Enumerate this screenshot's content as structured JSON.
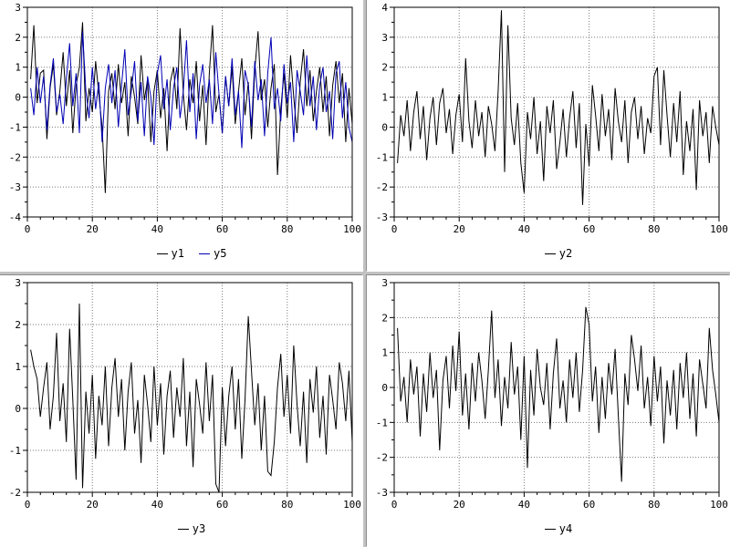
{
  "window": {
    "background": "#ffffff",
    "gutter_color": "#c2c2c2",
    "grid_color": "#7a7a7a",
    "frame_color": "#000000"
  },
  "chart_data": [
    {
      "id": "chart-y1-y5",
      "position": "top-left",
      "type": "line",
      "title": "",
      "xlabel": "",
      "ylabel": "",
      "xlim": [
        0,
        100
      ],
      "ylim": [
        -4,
        3
      ],
      "x_ticks": [
        0,
        20,
        40,
        60,
        80,
        100
      ],
      "y_ticks": [
        -4,
        -3,
        -2,
        -1,
        0,
        1,
        2,
        3
      ],
      "x_minor_step": 4,
      "y_minor_step": 0.5,
      "grid": "dotted",
      "legend_position": "bottom-center",
      "x_first": 1,
      "x_step": 1,
      "legend": [
        {
          "label": "y1",
          "color": "#000000"
        },
        {
          "label": "y5",
          "color": "#0000b4"
        }
      ],
      "series": [
        {
          "name": "y1",
          "color": "#000000",
          "values": [
            0.6,
            2.4,
            -0.2,
            0.8,
            0.9,
            -1.4,
            0.3,
            1.1,
            -0.6,
            0.2,
            1.5,
            -0.3,
            0.9,
            -1.2,
            0.4,
            1.0,
            2.5,
            -0.8,
            0.3,
            -0.5,
            1.2,
            0.1,
            -1.0,
            -3.2,
            0.2,
            0.8,
            -0.4,
            1.1,
            -0.2,
            0.5,
            -1.3,
            0.7,
            0.0,
            -0.9,
            1.4,
            -0.1,
            0.6,
            -1.5,
            0.2,
            0.9,
            -0.7,
            0.3,
            -1.8,
            0.5,
            1.0,
            -0.4,
            2.3,
            0.1,
            -1.1,
            0.6,
            -0.2,
            1.2,
            -0.8,
            0.4,
            -1.6,
            0.8,
            2.4,
            -0.5,
            0.1,
            -1.2,
            0.7,
            -0.3,
            1.0,
            -0.9,
            0.2,
            1.3,
            -0.6,
            0.5,
            -1.4,
            0.9,
            2.2,
            -0.1,
            0.6,
            -1.0,
            0.3,
            1.1,
            -2.6,
            -0.4,
            0.8,
            -0.7,
            1.4,
            0.0,
            -1.2,
            0.5,
            1.6,
            -0.3,
            0.9,
            -0.8,
            0.2,
            1.0,
            -0.5,
            0.7,
            -1.3,
            0.4,
            1.2,
            -0.2,
            0.8,
            -1.5,
            0.3,
            -0.9
          ]
        },
        {
          "name": "y5",
          "color": "#0000b4",
          "values": [
            0.3,
            -0.6,
            1.0,
            -0.2,
            0.7,
            -1.1,
            0.4,
            1.3,
            -0.5,
            0.1,
            -0.9,
            0.6,
            1.8,
            -0.3,
            0.8,
            -1.2,
            2.2,
            0.2,
            -0.7,
            1.0,
            -0.4,
            0.5,
            -1.5,
            0.3,
            1.1,
            -0.2,
            0.9,
            -1.0,
            0.4,
            1.6,
            -0.6,
            0.2,
            1.2,
            -0.8,
            0.5,
            -1.3,
            0.7,
            0.0,
            -1.6,
            0.8,
            1.4,
            -0.4,
            0.6,
            -1.1,
            0.3,
            1.0,
            -0.7,
            0.2,
            1.9,
            -0.5,
            0.8,
            -1.4,
            0.4,
            1.1,
            -0.2,
            0.6,
            -0.9,
            1.5,
            0.1,
            -1.2,
            0.7,
            -0.3,
            1.3,
            -0.6,
            0.2,
            -1.7,
            0.9,
            0.4,
            -1.0,
            1.2,
            -0.1,
            0.6,
            -1.3,
            0.8,
            2.0,
            -0.4,
            0.3,
            -0.8,
            1.1,
            -0.2,
            0.5,
            -1.5,
            0.9,
            0.2,
            -0.6,
            1.4,
            -0.3,
            0.7,
            -1.1,
            0.4,
            1.0,
            -0.5,
            0.2,
            -1.4,
            0.8,
            1.2,
            -0.7,
            0.5,
            -1.0,
            -1.5
          ]
        }
      ]
    },
    {
      "id": "chart-y2",
      "position": "top-right",
      "type": "line",
      "title": "",
      "xlabel": "",
      "ylabel": "",
      "xlim": [
        0,
        100
      ],
      "ylim": [
        -3,
        4
      ],
      "x_ticks": [
        0,
        20,
        40,
        60,
        80,
        100
      ],
      "y_ticks": [
        -3,
        -2,
        -1,
        0,
        1,
        2,
        3,
        4
      ],
      "x_minor_step": 4,
      "y_minor_step": 0.5,
      "grid": "dotted",
      "legend_position": "bottom-center",
      "x_first": 1,
      "x_step": 1,
      "legend": [
        {
          "label": "y2",
          "color": "#000000"
        }
      ],
      "series": [
        {
          "name": "y2",
          "color": "#000000",
          "values": [
            -1.2,
            0.4,
            -0.3,
            0.9,
            -0.8,
            0.5,
            1.2,
            -0.4,
            0.7,
            -1.1,
            0.3,
            1.0,
            -0.6,
            0.8,
            1.3,
            -0.2,
            0.6,
            -0.9,
            0.4,
            1.1,
            -0.5,
            2.3,
            0.2,
            -0.7,
            0.9,
            -0.3,
            0.5,
            -1.0,
            0.7,
            0.1,
            -0.8,
            1.2,
            3.9,
            -1.5,
            3.4,
            0.3,
            -0.6,
            0.8,
            -1.2,
            -2.2,
            0.5,
            -0.4,
            1.0,
            -0.9,
            0.2,
            -1.8,
            0.7,
            -0.2,
            0.9,
            -1.4,
            -0.5,
            0.6,
            -1.0,
            0.3,
            1.2,
            -0.7,
            0.8,
            -2.6,
            0.1,
            -1.3,
            1.4,
            0.4,
            -0.8,
            1.1,
            -0.3,
            0.6,
            -1.1,
            1.3,
            0.2,
            -0.5,
            0.9,
            -1.2,
            0.5,
            1.0,
            -0.4,
            0.7,
            -0.9,
            0.3,
            -0.2,
            1.7,
            2.0,
            -0.6,
            1.9,
            0.4,
            -1.0,
            0.8,
            -0.5,
            1.2,
            -1.6,
            0.2,
            -0.8,
            0.6,
            -2.1,
            0.9,
            -0.3,
            0.5,
            -1.2,
            0.7,
            0.0,
            -0.6
          ]
        }
      ]
    },
    {
      "id": "chart-y3",
      "position": "bottom-left",
      "type": "line",
      "title": "",
      "xlabel": "",
      "ylabel": "",
      "xlim": [
        0,
        100
      ],
      "ylim": [
        -2,
        3
      ],
      "x_ticks": [
        0,
        20,
        40,
        60,
        80,
        100
      ],
      "y_ticks": [
        -2,
        -1,
        0,
        1,
        2,
        3
      ],
      "x_minor_step": 4,
      "y_minor_step": 0.5,
      "grid": "dotted",
      "legend_position": "bottom-center",
      "x_first": 1,
      "x_step": 1,
      "legend": [
        {
          "label": "y3",
          "color": "#000000"
        }
      ],
      "series": [
        {
          "name": "y3",
          "color": "#000000",
          "values": [
            1.4,
            1.0,
            0.7,
            -0.2,
            0.5,
            1.1,
            -0.5,
            0.3,
            1.8,
            -0.3,
            0.6,
            -0.8,
            1.9,
            0.2,
            -1.7,
            2.5,
            -1.9,
            0.4,
            -0.6,
            0.8,
            -1.2,
            0.3,
            -0.4,
            1.0,
            -0.9,
            0.5,
            1.2,
            -0.2,
            0.7,
            -1.0,
            0.4,
            1.1,
            -0.6,
            0.2,
            -1.3,
            0.8,
            0.1,
            -0.8,
            1.0,
            -0.4,
            0.6,
            -1.1,
            0.3,
            0.9,
            -0.7,
            0.5,
            -0.2,
            1.2,
            -0.9,
            0.4,
            -1.4,
            0.7,
            0.1,
            -0.6,
            1.1,
            -0.3,
            0.8,
            -1.8,
            -2.0,
            0.5,
            -0.9,
            0.3,
            1.0,
            -0.5,
            0.7,
            -1.2,
            0.2,
            2.2,
            0.9,
            -0.4,
            0.6,
            -1.0,
            0.3,
            -1.5,
            -1.6,
            -0.8,
            0.5,
            1.3,
            -0.2,
            0.8,
            -0.6,
            1.5,
            0.1,
            -0.9,
            0.4,
            -1.3,
            0.7,
            -0.1,
            1.0,
            -0.7,
            0.3,
            -1.1,
            0.8,
            0.2,
            -0.5,
            1.1,
            0.6,
            -0.3,
            0.9,
            -0.8
          ]
        }
      ]
    },
    {
      "id": "chart-y4",
      "position": "bottom-right",
      "type": "line",
      "title": "",
      "xlabel": "",
      "ylabel": "",
      "xlim": [
        0,
        100
      ],
      "ylim": [
        -3,
        3
      ],
      "x_ticks": [
        0,
        20,
        40,
        60,
        80,
        100
      ],
      "y_ticks": [
        -3,
        -2,
        -1,
        0,
        1,
        2,
        3
      ],
      "x_minor_step": 4,
      "y_minor_step": 0.5,
      "grid": "dotted",
      "legend_position": "bottom-center",
      "x_first": 1,
      "x_step": 1,
      "legend": [
        {
          "label": "y4",
          "color": "#000000"
        }
      ],
      "series": [
        {
          "name": "y4",
          "color": "#000000",
          "values": [
            1.7,
            -0.4,
            0.3,
            -1.0,
            0.8,
            -0.2,
            0.6,
            -1.4,
            0.4,
            -0.7,
            1.0,
            -0.3,
            0.5,
            -1.8,
            0.2,
            0.9,
            -0.6,
            1.2,
            -0.1,
            1.6,
            -0.8,
            0.4,
            -1.2,
            0.7,
            -0.4,
            1.0,
            0.2,
            -0.9,
            0.5,
            2.2,
            -0.3,
            0.8,
            -1.1,
            0.3,
            -0.6,
            1.3,
            -0.2,
            0.6,
            -1.5,
            0.9,
            -2.3,
            0.5,
            -0.8,
            1.1,
            0.0,
            -0.5,
            0.7,
            -1.2,
            0.4,
            1.4,
            -0.6,
            0.2,
            -1.0,
            0.8,
            -0.3,
            1.0,
            -0.7,
            0.5,
            2.3,
            1.8,
            -0.4,
            0.6,
            -1.3,
            0.3,
            -0.9,
            0.7,
            -0.2,
            1.1,
            -0.8,
            -2.7,
            0.4,
            -0.5,
            1.5,
            0.8,
            -0.1,
            1.2,
            -0.6,
            0.3,
            -1.1,
            0.9,
            -0.4,
            0.6,
            -1.6,
            0.2,
            -0.8,
            0.5,
            -1.2,
            0.7,
            -0.3,
            1.0,
            -0.9,
            0.4,
            -1.4,
            0.8,
            0.1,
            -0.6,
            1.7,
            0.5,
            -0.2,
            -1.0
          ]
        }
      ]
    }
  ]
}
